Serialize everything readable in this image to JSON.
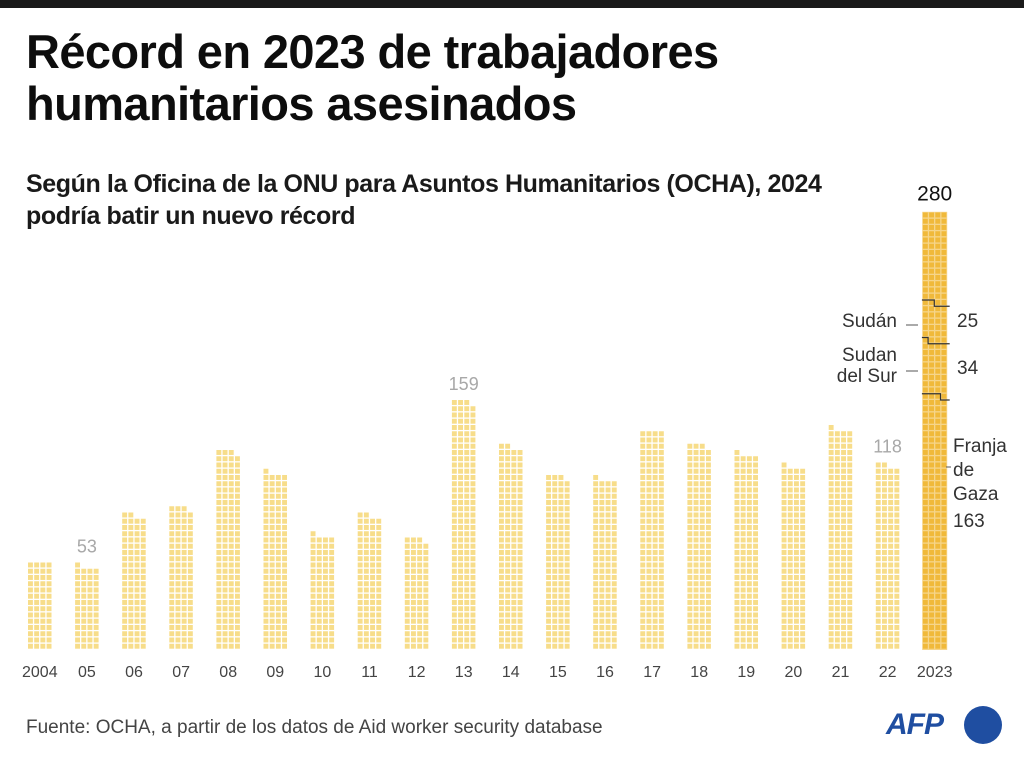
{
  "header": {
    "title": "Récord en 2023 de trabajadores humanitarios asesinados",
    "subtitle": "Según la Oficina de la ONU para Asuntos Humanitarios (OCHA), 2024 podría batir un nuevo récord"
  },
  "footer": {
    "source": "Fuente: OCHA, a partir de los datos de Aid worker security database",
    "logo": "AFP"
  },
  "colors": {
    "bar_light": "#f7dd8a",
    "bar_highlight": "#f0b93a",
    "label_gray": "#a8a8a8",
    "logo_blue": "#1f4ea1"
  },
  "chart_data": {
    "type": "bar",
    "title": "Récord en 2023 de trabajadores humanitarios asesinados",
    "xlabel": "",
    "ylabel": "",
    "unit_per_square": 1,
    "categories": [
      "2004",
      "05",
      "06",
      "07",
      "08",
      "09",
      "10",
      "11",
      "12",
      "13",
      "14",
      "15",
      "16",
      "17",
      "18",
      "19",
      "20",
      "21",
      "22",
      "2023"
    ],
    "values": [
      56,
      53,
      86,
      91,
      127,
      113,
      73,
      86,
      71,
      159,
      130,
      111,
      109,
      140,
      131,
      125,
      117,
      141,
      118,
      280
    ],
    "labeled_values": {
      "05": "53",
      "13": "159",
      "22": "118",
      "2023": "280"
    },
    "highlight": "2023",
    "breakdown_2023": [
      {
        "name": "Franja de Gaza",
        "value": 163
      },
      {
        "name": "Sudan del Sur",
        "value": 34
      },
      {
        "name": "Sudán",
        "value": 25
      }
    ],
    "annotations": {
      "sudan": {
        "label": "Sudán",
        "value": "25"
      },
      "south_sudan": {
        "label": "Sudan del Sur",
        "value": "34"
      },
      "gaza": {
        "label_lines": [
          "Franja",
          "de",
          "Gaza"
        ],
        "value": "163"
      }
    },
    "ylim": [
      0,
      280
    ],
    "grid": false,
    "legend": "none"
  }
}
